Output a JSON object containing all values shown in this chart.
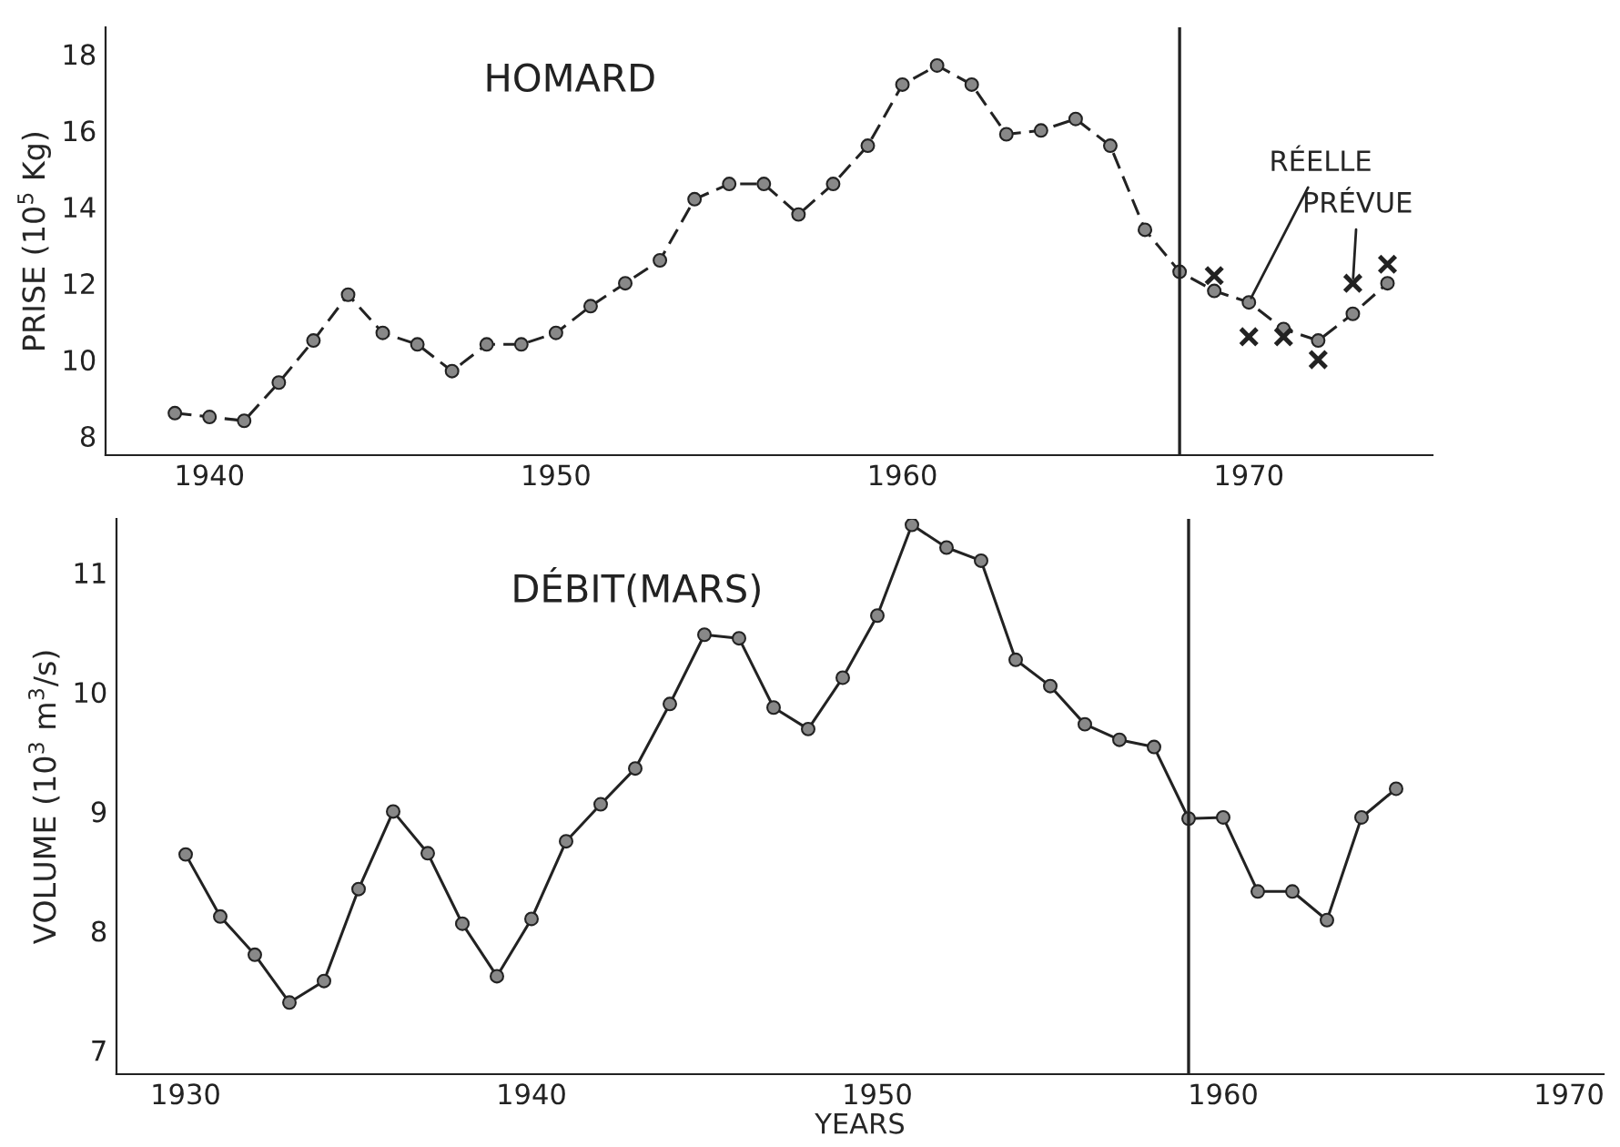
{
  "chart_data": [
    {
      "type": "line",
      "title": "HOMARD",
      "ylabel": "PRISE (10$^{5}$ Kg)",
      "xlim": [
        1937,
        1975.3
      ],
      "xticks": [
        1940,
        1950,
        1960,
        1970
      ],
      "ylim": [
        7.5,
        18.7
      ],
      "yticks": [
        8,
        10,
        12,
        14,
        16,
        18
      ],
      "grid": false,
      "legend": false,
      "series": [
        {
          "marker": "circle",
          "line_style": "dashed",
          "color": "#222222",
          "x": [
            1939,
            1940,
            1941,
            1942,
            1943,
            1944,
            1945,
            1946,
            1947,
            1948,
            1949,
            1950,
            1951,
            1952,
            1953,
            1954,
            1955,
            1956,
            1957,
            1958,
            1959,
            1960,
            1961,
            1962,
            1963,
            1964,
            1965,
            1966,
            1967,
            1968,
            1969,
            1970,
            1971,
            1972,
            1973,
            1974
          ],
          "values": [
            8.6,
            8.5,
            8.4,
            9.4,
            10.5,
            11.7,
            10.7,
            10.4,
            9.7,
            10.4,
            10.4,
            10.7,
            11.4,
            12.0,
            12.6,
            14.2,
            14.6,
            14.6,
            13.8,
            14.6,
            15.6,
            17.2,
            17.7,
            17.2,
            15.9,
            16.0,
            16.3,
            15.6,
            13.4,
            12.3,
            11.8,
            11.5,
            10.8,
            10.5,
            11.2,
            12.0
          ]
        },
        {
          "type": "scatter",
          "marker": "cross",
          "color": "#222222",
          "x": [
            1969,
            1970,
            1971,
            1972,
            1973,
            1974
          ],
          "values": [
            12.2,
            10.6,
            10.6,
            10.0,
            12.0,
            12.5
          ]
        }
      ],
      "ref_lines": [
        {
          "axis": "x",
          "value": 1968,
          "color": "#222222"
        }
      ],
      "annotations": [
        {
          "text": "RÉELLE",
          "x": 1970,
          "y": 11.5
        },
        {
          "text": "PRÉVUE",
          "x": 1973,
          "y": 12.0
        }
      ]
    },
    {
      "type": "line",
      "title": "DÉBIT(MARS)",
      "xlabel": "YEARS",
      "ylabel": "VOLUME (10$^{3}$ m$^{3}$/s)",
      "xlim": [
        1928,
        1971
      ],
      "xticks": [
        1930,
        1940,
        1950,
        1960,
        1970
      ],
      "ylim": [
        6.8,
        11.45
      ],
      "yticks": [
        7,
        8,
        9,
        10,
        11
      ],
      "grid": false,
      "legend": false,
      "series": [
        {
          "marker": "circle",
          "line_style": "solid",
          "color": "#222222",
          "x": [
            1930,
            1931,
            1932,
            1933,
            1934,
            1935,
            1936,
            1937,
            1938,
            1939,
            1940,
            1941,
            1942,
            1943,
            1944,
            1945,
            1946,
            1947,
            1948,
            1949,
            1950,
            1951,
            1952,
            1953,
            1954,
            1955,
            1956,
            1957,
            1958,
            1959,
            1960,
            1961,
            1962,
            1963,
            1964,
            1965
          ],
          "values": [
            8.64,
            8.12,
            7.8,
            7.4,
            7.58,
            8.35,
            9.0,
            8.65,
            8.06,
            7.62,
            8.1,
            8.75,
            9.06,
            9.36,
            9.9,
            10.48,
            10.45,
            9.87,
            9.69,
            10.12,
            10.64,
            11.4,
            11.21,
            11.1,
            10.27,
            10.05,
            9.73,
            9.6,
            9.54,
            8.94,
            8.95,
            8.33,
            8.33,
            8.09,
            8.95,
            9.19
          ]
        }
      ],
      "ref_lines": [
        {
          "axis": "x",
          "value": 1959,
          "color": "#222222"
        }
      ]
    }
  ]
}
